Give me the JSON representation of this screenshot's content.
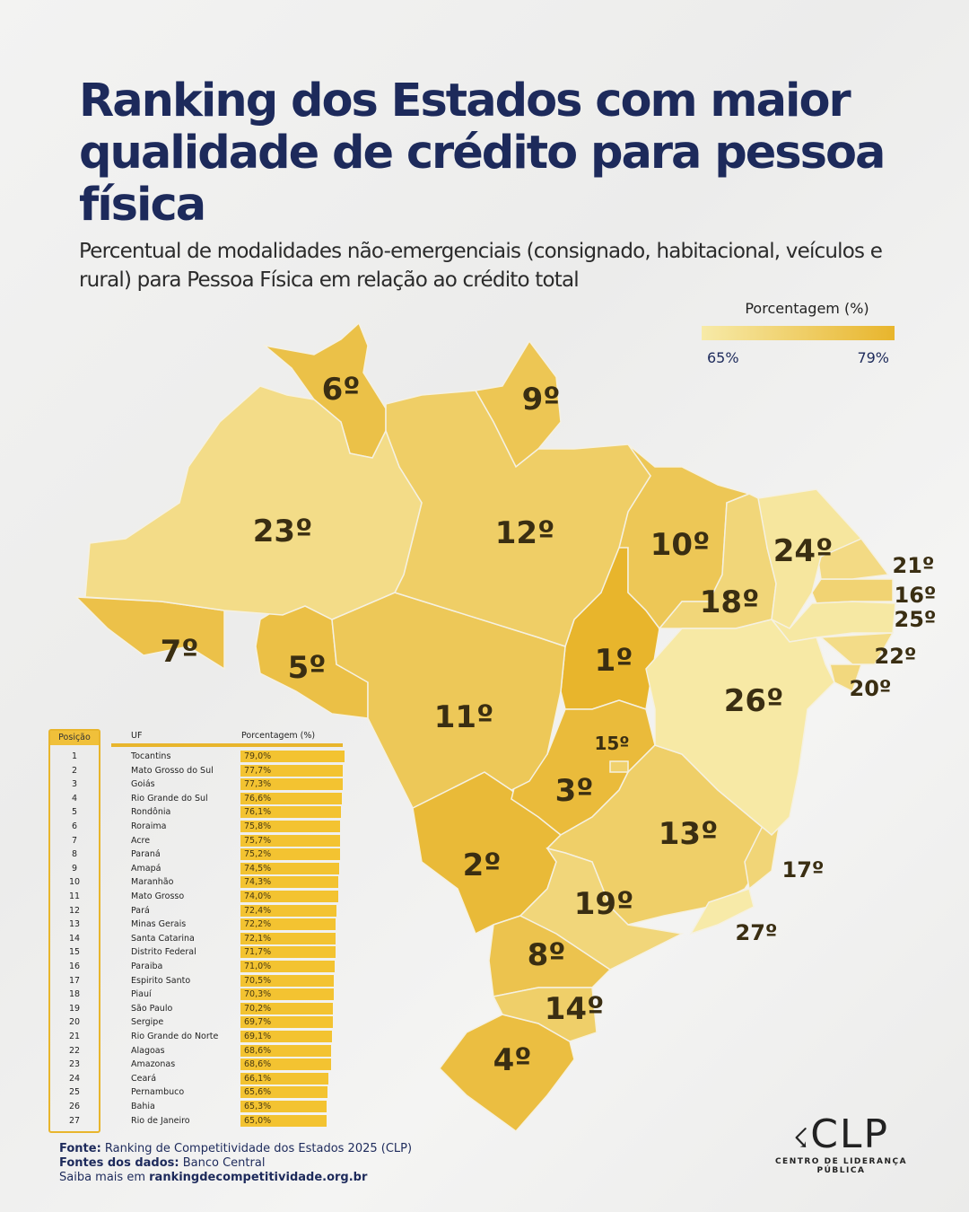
{
  "header": {
    "title": "Ranking dos Estados com maior qualidade de crédito para pessoa física",
    "subtitle": "Percentual de modalidades não-emergenciais (consignado, habitacional, veículos e rural) para Pessoa Física em relação ao crédito total"
  },
  "legend": {
    "title": "Porcentagem (%)",
    "min_label": "65%",
    "max_label": "79%",
    "min": 65,
    "max": 79,
    "color_min": "#f7eaa8",
    "color_max": "#e8b52c"
  },
  "table": {
    "headers": {
      "position": "Posição",
      "uf": "UF",
      "percent": "Porcentagem (%)"
    },
    "bar_color": "#f3c331",
    "rows": [
      {
        "pos": "1",
        "uf": "Tocantins",
        "label": "79,0%",
        "value": 79.0,
        "rank_label": "1º"
      },
      {
        "pos": "2",
        "uf": "Mato Grosso do Sul",
        "label": "77,7%",
        "value": 77.7,
        "rank_label": "2º"
      },
      {
        "pos": "3",
        "uf": "Goiás",
        "label": "77,3%",
        "value": 77.3,
        "rank_label": "3º"
      },
      {
        "pos": "4",
        "uf": "Rio Grande do Sul",
        "label": "76,6%",
        "value": 76.6,
        "rank_label": "4º"
      },
      {
        "pos": "5",
        "uf": "Rondônia",
        "label": "76,1%",
        "value": 76.1,
        "rank_label": "5º"
      },
      {
        "pos": "6",
        "uf": "Roraima",
        "label": "75,8%",
        "value": 75.8,
        "rank_label": "6º"
      },
      {
        "pos": "7",
        "uf": "Acre",
        "label": "75,7%",
        "value": 75.7,
        "rank_label": "7º"
      },
      {
        "pos": "8",
        "uf": "Paraná",
        "label": "75,2%",
        "value": 75.2,
        "rank_label": "8º"
      },
      {
        "pos": "9",
        "uf": "Amapá",
        "label": "74,5%",
        "value": 74.5,
        "rank_label": "9º"
      },
      {
        "pos": "10",
        "uf": "Maranhão",
        "label": "74,3%",
        "value": 74.3,
        "rank_label": "10º"
      },
      {
        "pos": "11",
        "uf": "Mato Grosso",
        "label": "74,0%",
        "value": 74.0,
        "rank_label": "11º"
      },
      {
        "pos": "12",
        "uf": "Pará",
        "label": "72,4%",
        "value": 72.4,
        "rank_label": "12º"
      },
      {
        "pos": "13",
        "uf": "Minas Gerais",
        "label": "72,2%",
        "value": 72.2,
        "rank_label": "13º"
      },
      {
        "pos": "14",
        "uf": "Santa Catarina",
        "label": "72,1%",
        "value": 72.1,
        "rank_label": "14º"
      },
      {
        "pos": "15",
        "uf": "Distrito Federal",
        "label": "71,7%",
        "value": 71.7,
        "rank_label": "15º"
      },
      {
        "pos": "16",
        "uf": "Paraiba",
        "label": "71,0%",
        "value": 71.0,
        "rank_label": "16º"
      },
      {
        "pos": "17",
        "uf": "Espirito Santo",
        "label": "70,5%",
        "value": 70.5,
        "rank_label": "17º"
      },
      {
        "pos": "18",
        "uf": "Piauí",
        "label": "70,3%",
        "value": 70.3,
        "rank_label": "18º"
      },
      {
        "pos": "19",
        "uf": "São Paulo",
        "label": "70,2%",
        "value": 70.2,
        "rank_label": "19º"
      },
      {
        "pos": "20",
        "uf": "Sergipe",
        "label": "69,7%",
        "value": 69.7,
        "rank_label": "20º"
      },
      {
        "pos": "21",
        "uf": "Rio Grande do Norte",
        "label": "69,1%",
        "value": 69.1,
        "rank_label": "21º"
      },
      {
        "pos": "22",
        "uf": "Alagoas",
        "label": "68,6%",
        "value": 68.6,
        "rank_label": "22º"
      },
      {
        "pos": "23",
        "uf": "Amazonas",
        "label": "68,6%",
        "value": 68.6,
        "rank_label": "23º"
      },
      {
        "pos": "24",
        "uf": "Ceará",
        "label": "66,1%",
        "value": 66.1,
        "rank_label": "24º"
      },
      {
        "pos": "25",
        "uf": "Pernambuco",
        "label": "65,6%",
        "value": 65.6,
        "rank_label": "25º"
      },
      {
        "pos": "26",
        "uf": "Bahia",
        "label": "65,3%",
        "value": 65.3,
        "rank_label": "26º"
      },
      {
        "pos": "27",
        "uf": "Rio de Janeiro",
        "label": "65,0%",
        "value": 65.0,
        "rank_label": "27º"
      }
    ]
  },
  "sources": {
    "fonte_label": "Fonte:",
    "fonte_text": "Ranking de Competitividade dos Estados 2025 (CLP)",
    "dados_label": "Fontes dos dados:",
    "dados_text": "Banco Central",
    "saiba_label": "Saiba mais em",
    "saiba_link": "rankingdecompetitividade.org.br"
  },
  "logo": {
    "mark": "CLP",
    "subtitle": "CENTRO DE LIDERANÇA PÚBLICA"
  }
}
